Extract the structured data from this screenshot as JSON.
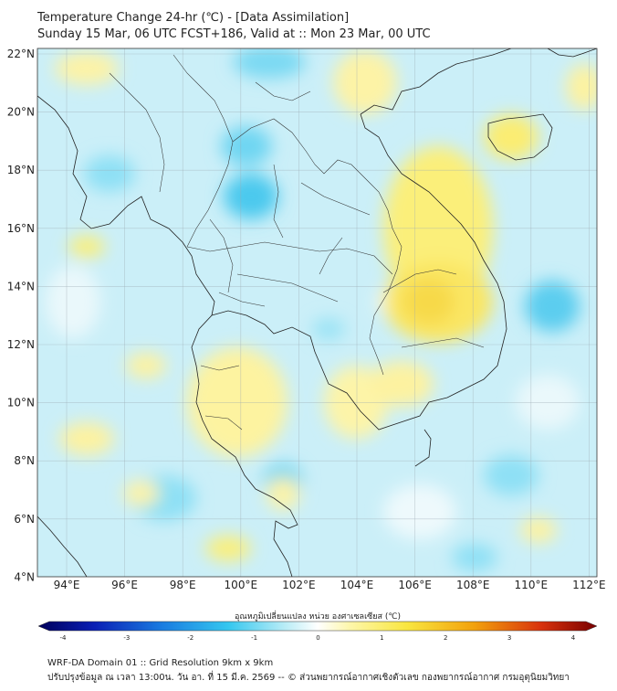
{
  "header": {
    "title_line1": "Temperature Change 24-hr (℃) - [Data Assimilation]",
    "title_line2": "Sunday 15 Mar, 06 UTC FCST+186, Valid at :: Mon 23 Mar, 00 UTC"
  },
  "map": {
    "lat_labels": [
      "22°N",
      "20°N",
      "18°N",
      "16°N",
      "14°N",
      "12°N",
      "10°N",
      "8°N",
      "6°N",
      "4°N"
    ],
    "lon_labels": [
      "94°E",
      "96°E",
      "98°E",
      "100°E",
      "102°E",
      "104°E",
      "106°E",
      "108°E",
      "110°E",
      "112°E"
    ]
  },
  "colorbar": {
    "label": "อุณหภูมิเปลี่ยนแปลง หน่วย องศาเซลเซียส (℃)",
    "ticks": [
      "-4",
      "-3",
      "-2",
      "-1",
      "0",
      "1",
      "2",
      "3",
      "4"
    ],
    "colors": [
      "#00005a",
      "#0a1fb4",
      "#1a7be0",
      "#35c7ef",
      "#b7ecf6",
      "#ffffff",
      "#fdf6a8",
      "#f9e640",
      "#f2a10c",
      "#d8320c",
      "#780000"
    ]
  },
  "footer": {
    "line1": "WRF-DA Domain 01 :: Grid Resolution 9km x 9km",
    "line2": "ปรับปรุงข้อมูล ณ เวลา 13:00น. วัน อา. ที่ 15 มี.ค. 2569 -- © ส่วนพยากรณ์อากาศเชิงตัวเลข กองพยากรณ์อากาศ กรมอุตุนิยมวิทยา"
  }
}
